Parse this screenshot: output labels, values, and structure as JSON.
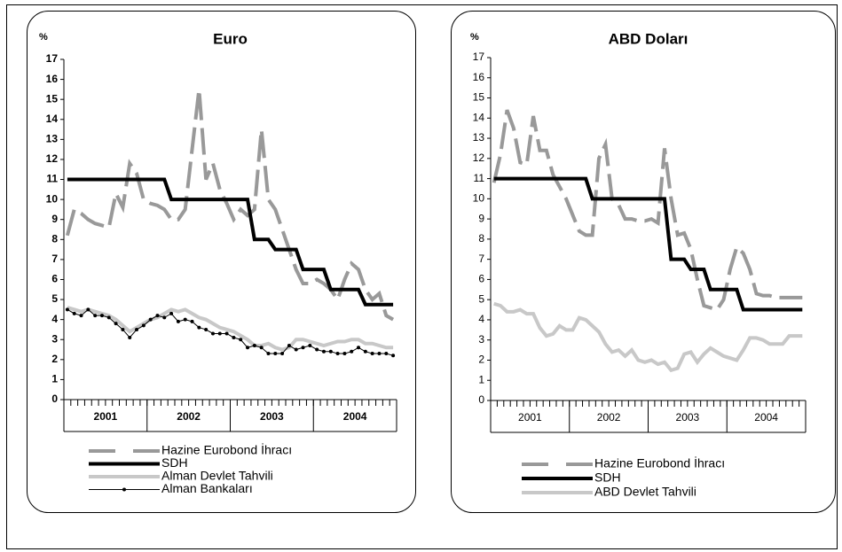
{
  "chart_data": [
    {
      "type": "line",
      "title": "Euro",
      "y_unit": "%",
      "categories": [
        null,
        null,
        null,
        null,
        null,
        null,
        null,
        null,
        null,
        null,
        null,
        null,
        null,
        null,
        null,
        null,
        null,
        null,
        null,
        null,
        null,
        null,
        null,
        null,
        null,
        null,
        null,
        null,
        null,
        null,
        null,
        null,
        null,
        null,
        null,
        null,
        null,
        null,
        null,
        null,
        null,
        null,
        null,
        null,
        null,
        null,
        null,
        null
      ],
      "groups": [
        "2001",
        "2002",
        "2003",
        "2004"
      ],
      "ylim": [
        0,
        17
      ],
      "yticks": [
        0,
        1,
        2,
        3,
        4,
        5,
        6,
        7,
        8,
        9,
        10,
        11,
        12,
        13,
        14,
        15,
        16,
        17
      ],
      "legend": "bottom",
      "series": [
        {
          "name": "Hazine Eurobond İhracı",
          "color": "#999999",
          "dashed": true,
          "values": [
            8.2,
            9.5,
            9.3,
            9.0,
            8.8,
            8.7,
            8.6,
            10.3,
            9.6,
            11.8,
            11.3,
            10.0,
            9.8,
            9.7,
            9.5,
            9.0,
            9.0,
            9.5,
            12.5,
            15.5,
            11.0,
            11.8,
            10.5,
            9.8,
            9.0,
            9.5,
            9.2,
            9.5,
            13.5,
            10.0,
            9.5,
            8.5,
            7.5,
            6.5,
            5.8,
            5.8,
            6.0,
            5.8,
            5.5,
            5.0,
            6.0,
            6.8,
            6.5,
            5.5,
            5.0,
            5.3,
            4.2,
            4.0
          ]
        },
        {
          "name": "SDH",
          "color": "#000000",
          "values": [
            11,
            11,
            11,
            11,
            11,
            11,
            11,
            11,
            11,
            11,
            11,
            11,
            11,
            11,
            11,
            10,
            10,
            10,
            10,
            10,
            10,
            10,
            10,
            10,
            10,
            10,
            10,
            8,
            8,
            8,
            7.5,
            7.5,
            7.5,
            7.5,
            6.5,
            6.5,
            6.5,
            6.5,
            5.5,
            5.5,
            5.5,
            5.5,
            5.5,
            4.75,
            4.75,
            4.75,
            4.75,
            4.75
          ]
        },
        {
          "name": "Alman Devlet Tahvili",
          "color": "#c8c8c8",
          "values": [
            4.6,
            4.5,
            4.4,
            4.5,
            4.4,
            4.3,
            4.2,
            4.0,
            3.7,
            3.4,
            3.6,
            3.8,
            4.0,
            4.1,
            4.3,
            4.5,
            4.4,
            4.5,
            4.3,
            4.1,
            4.0,
            3.8,
            3.6,
            3.5,
            3.4,
            3.2,
            3.0,
            2.7,
            2.7,
            2.8,
            2.6,
            2.5,
            2.6,
            3.0,
            3.0,
            2.9,
            2.8,
            2.7,
            2.8,
            2.9,
            2.9,
            3.0,
            3.0,
            2.8,
            2.8,
            2.7,
            2.6,
            2.6
          ]
        },
        {
          "name": "Alman Bankaları",
          "color": "#000000",
          "marker": "circle",
          "values": [
            4.5,
            4.3,
            4.2,
            4.5,
            4.2,
            4.2,
            4.1,
            3.8,
            3.5,
            3.1,
            3.5,
            3.7,
            4.0,
            4.2,
            4.1,
            4.3,
            3.9,
            4.0,
            3.9,
            3.6,
            3.5,
            3.3,
            3.3,
            3.3,
            3.1,
            3.0,
            2.6,
            2.7,
            2.6,
            2.3,
            2.3,
            2.3,
            2.7,
            2.5,
            2.6,
            2.7,
            2.5,
            2.4,
            2.4,
            2.3,
            2.3,
            2.4,
            2.6,
            2.4,
            2.3,
            2.3,
            2.3,
            2.2
          ]
        }
      ]
    },
    {
      "type": "line",
      "title": "ABD Doları",
      "y_unit": "%",
      "categories": [
        null,
        null,
        null,
        null,
        null,
        null,
        null,
        null,
        null,
        null,
        null,
        null,
        null,
        null,
        null,
        null,
        null,
        null,
        null,
        null,
        null,
        null,
        null,
        null,
        null,
        null,
        null,
        null,
        null,
        null,
        null,
        null,
        null,
        null,
        null,
        null,
        null,
        null,
        null,
        null,
        null,
        null,
        null,
        null,
        null,
        null,
        null,
        null
      ],
      "groups": [
        "2001",
        "2002",
        "2003",
        "2004"
      ],
      "ylim": [
        0,
        17
      ],
      "yticks": [
        0,
        1,
        2,
        3,
        4,
        5,
        6,
        7,
        8,
        9,
        10,
        11,
        12,
        13,
        14,
        15,
        16,
        17
      ],
      "legend": "bottom",
      "series": [
        {
          "name": "Hazine Eurobond İhracı",
          "color": "#999999",
          "dashed": true,
          "values": [
            10.8,
            12.2,
            14.4,
            13.5,
            11.8,
            11.7,
            14.1,
            12.4,
            12.4,
            11.2,
            10.6,
            10.0,
            9.2,
            8.4,
            8.2,
            8.2,
            12.0,
            12.7,
            10.0,
            9.7,
            9.0,
            9.0,
            8.9,
            8.9,
            9.0,
            8.8,
            12.5,
            10.0,
            8.2,
            8.3,
            7.5,
            6.0,
            4.7,
            4.6,
            4.5,
            5.0,
            6.5,
            7.6,
            7.3,
            6.5,
            5.3,
            5.2,
            5.2,
            5.1,
            5.1,
            5.1,
            5.1,
            5.1
          ]
        },
        {
          "name": "SDH",
          "color": "#000000",
          "values": [
            11,
            11,
            11,
            11,
            11,
            11,
            11,
            11,
            11,
            11,
            11,
            11,
            11,
            11,
            11,
            10,
            10,
            10,
            10,
            10,
            10,
            10,
            10,
            10,
            10,
            10,
            10,
            7,
            7,
            7,
            6.5,
            6.5,
            6.5,
            5.5,
            5.5,
            5.5,
            5.5,
            5.5,
            4.5,
            4.5,
            4.5,
            4.5,
            4.5,
            4.5,
            4.5,
            4.5,
            4.5,
            4.5
          ]
        },
        {
          "name": "ABD Devlet Tahvili",
          "color": "#c8c8c8",
          "values": [
            4.8,
            4.7,
            4.4,
            4.4,
            4.5,
            4.3,
            4.3,
            3.6,
            3.2,
            3.3,
            3.7,
            3.5,
            3.5,
            4.1,
            4.0,
            3.7,
            3.4,
            2.8,
            2.4,
            2.5,
            2.2,
            2.5,
            2.0,
            1.9,
            2.0,
            1.8,
            1.9,
            1.5,
            1.6,
            2.3,
            2.4,
            1.9,
            2.3,
            2.6,
            2.4,
            2.2,
            2.1,
            2.0,
            2.5,
            3.1,
            3.1,
            3.0,
            2.8,
            2.8,
            2.8,
            3.2,
            3.2,
            3.2
          ]
        }
      ]
    }
  ]
}
